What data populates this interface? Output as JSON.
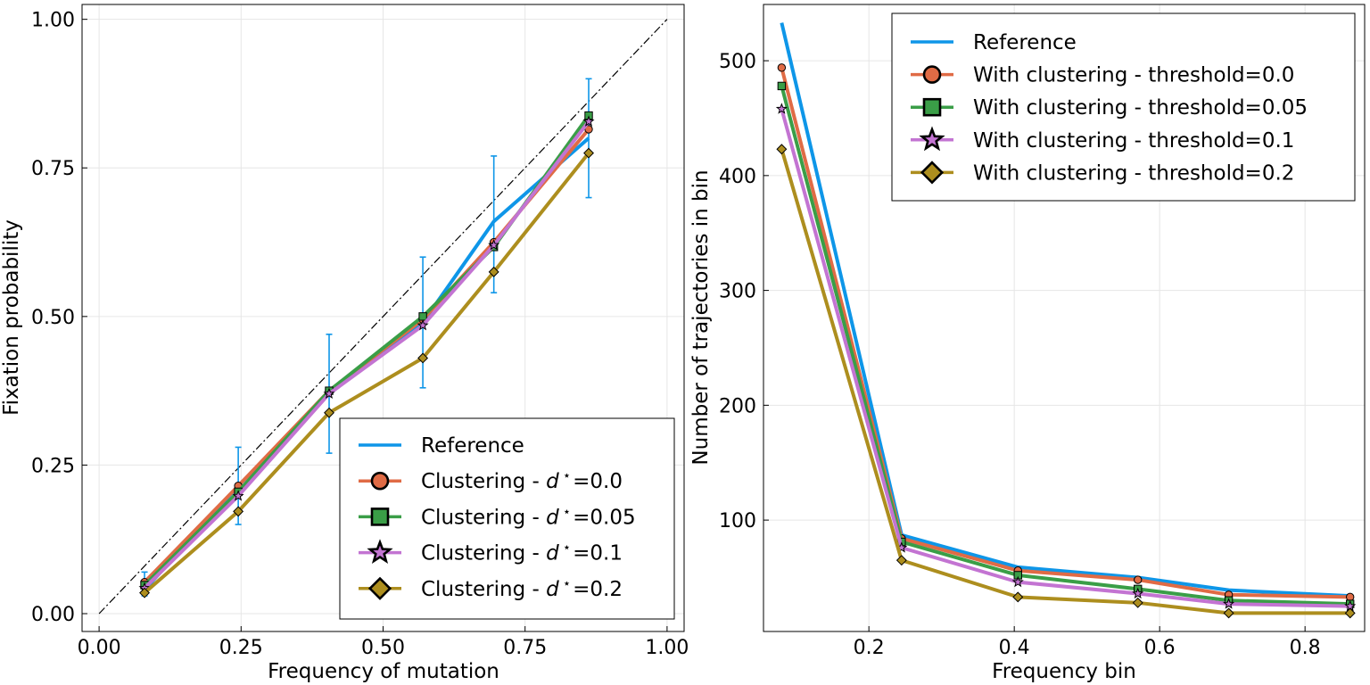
{
  "chart_data": [
    {
      "type": "line",
      "xlabel": "Frequency of mutation",
      "ylabel": "Fixation probability",
      "xlim": [
        -0.03,
        1.03
      ],
      "ylim": [
        -0.03,
        1.025
      ],
      "xticks": [
        0.0,
        0.25,
        0.5,
        0.75,
        1.0
      ],
      "xtick_labels": [
        "0.00",
        "0.25",
        "0.50",
        "0.75",
        "1.00"
      ],
      "yticks": [
        0.0,
        0.25,
        0.5,
        0.75,
        1.0
      ],
      "ytick_labels": [
        "0.00",
        "0.25",
        "0.50",
        "0.75",
        "1.00"
      ],
      "grid": true,
      "legend_position": "bottom-right",
      "diagonal": {
        "style": "dash-dot",
        "color": "#000000",
        "x": [
          0.0,
          1.0
        ],
        "y": [
          0.0,
          1.0
        ]
      },
      "series": [
        {
          "name": "Reference",
          "color": "#0e96e8",
          "marker": "none",
          "x": [
            0.08,
            0.245,
            0.405,
            0.57,
            0.695,
            0.862
          ],
          "y": [
            0.04,
            0.215,
            0.37,
            0.49,
            0.66,
            0.8
          ],
          "error_low": [
            0.03,
            0.15,
            0.27,
            0.38,
            0.54,
            0.7
          ],
          "error_high": [
            0.07,
            0.28,
            0.47,
            0.6,
            0.77,
            0.9
          ]
        },
        {
          "name_prefix": "Clustering - ",
          "name_symbol": "d",
          "name_sup": "⋆",
          "name_value": "=0.0",
          "color": "#e06b45",
          "marker": "circle",
          "x": [
            0.08,
            0.245,
            0.405,
            0.57,
            0.695,
            0.862
          ],
          "y": [
            0.053,
            0.215,
            0.375,
            0.495,
            0.625,
            0.815
          ]
        },
        {
          "name_prefix": "Clustering - ",
          "name_symbol": "d",
          "name_sup": "⋆",
          "name_value": "=0.05",
          "color": "#3a9e47",
          "marker": "square",
          "x": [
            0.08,
            0.245,
            0.405,
            0.57,
            0.695,
            0.862
          ],
          "y": [
            0.048,
            0.205,
            0.375,
            0.5,
            0.617,
            0.838
          ]
        },
        {
          "name_prefix": "Clustering - ",
          "name_symbol": "d",
          "name_sup": "⋆",
          "name_value": "=0.1",
          "color": "#c374d2",
          "marker": "star",
          "x": [
            0.08,
            0.245,
            0.405,
            0.57,
            0.695,
            0.862
          ],
          "y": [
            0.043,
            0.198,
            0.37,
            0.485,
            0.62,
            0.828
          ]
        },
        {
          "name_prefix": "Clustering - ",
          "name_symbol": "d",
          "name_sup": "⋆",
          "name_value": "=0.2",
          "color": "#ad8e1e",
          "marker": "diamond",
          "x": [
            0.08,
            0.245,
            0.405,
            0.57,
            0.695,
            0.862
          ],
          "y": [
            0.035,
            0.172,
            0.338,
            0.43,
            0.575,
            0.775
          ]
        }
      ]
    },
    {
      "type": "line",
      "xlabel": "Frequency bin",
      "ylabel": "Number of trajectories in bin",
      "xlim": [
        0.055,
        0.882
      ],
      "ylim": [
        3,
        549
      ],
      "xticks": [
        0.2,
        0.4,
        0.6,
        0.8
      ],
      "xtick_labels": [
        "0.2",
        "0.4",
        "0.6",
        "0.8"
      ],
      "yticks": [
        100,
        200,
        300,
        400,
        500
      ],
      "ytick_labels": [
        "100",
        "200",
        "300",
        "400",
        "500"
      ],
      "grid": true,
      "legend_position": "top-right",
      "series": [
        {
          "name": "Reference",
          "color": "#0e96e8",
          "marker": "none",
          "x": [
            0.08,
            0.245,
            0.405,
            0.57,
            0.695,
            0.862
          ],
          "y": [
            533,
            87,
            59,
            50,
            39,
            34
          ]
        },
        {
          "name": "With clustering - threshold=0.0",
          "color": "#e06b45",
          "marker": "circle",
          "x": [
            0.08,
            0.245,
            0.405,
            0.57,
            0.695,
            0.862
          ],
          "y": [
            494,
            84,
            56,
            48,
            35,
            33
          ]
        },
        {
          "name": "With clustering - threshold=0.05",
          "color": "#3a9e47",
          "marker": "square",
          "x": [
            0.08,
            0.245,
            0.405,
            0.57,
            0.695,
            0.862
          ],
          "y": [
            478,
            81,
            52,
            40,
            30,
            27
          ]
        },
        {
          "name": "With clustering - threshold=0.1",
          "color": "#c374d2",
          "marker": "star",
          "x": [
            0.08,
            0.245,
            0.405,
            0.57,
            0.695,
            0.862
          ],
          "y": [
            458,
            76,
            46,
            36,
            27,
            25
          ]
        },
        {
          "name": "With clustering - threshold=0.2",
          "color": "#ad8e1e",
          "marker": "diamond",
          "x": [
            0.08,
            0.245,
            0.405,
            0.57,
            0.695,
            0.862
          ],
          "y": [
            423,
            65,
            33,
            28,
            19,
            19
          ]
        }
      ]
    }
  ]
}
